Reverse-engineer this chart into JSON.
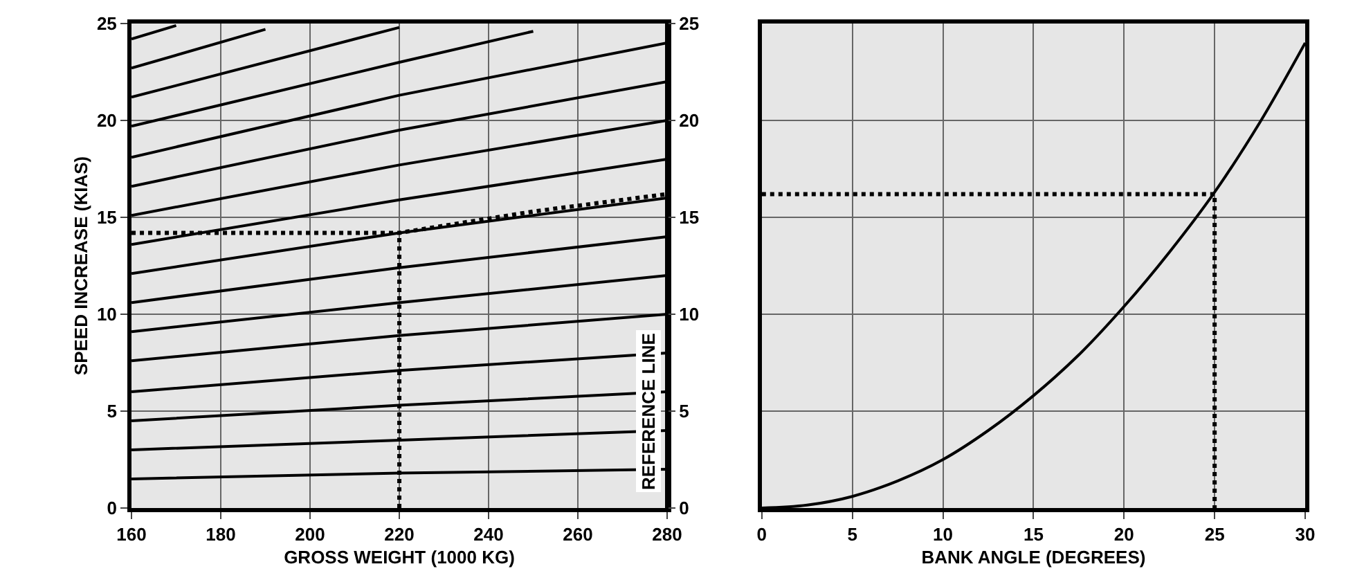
{
  "chart_data": [
    {
      "type": "line",
      "xlabel": "GROSS WEIGHT (1000 KG)",
      "ylabel": "SPEED INCREASE (KIAS)",
      "xlim": [
        160,
        280
      ],
      "xticks": [
        160,
        180,
        200,
        220,
        240,
        260,
        280
      ],
      "ylim": [
        0,
        25
      ],
      "yticks": [
        0,
        5,
        10,
        15,
        20,
        25
      ],
      "y2lim": [
        0,
        25
      ],
      "y2ticks": [
        0,
        5,
        10,
        15,
        20,
        25
      ],
      "grid": true,
      "marker": "none",
      "line_style": "solid",
      "ref_lines": [
        {
          "axis": "x",
          "value": 280,
          "label": "REFERENCE LINE",
          "color": "#000000"
        }
      ],
      "series": [
        {
          "color": "#000000",
          "x": [
            160,
            220,
            280
          ],
          "values": [
            1.5,
            1.8,
            2
          ]
        },
        {
          "color": "#000000",
          "x": [
            160,
            220,
            280
          ],
          "values": [
            3.0,
            3.5,
            4
          ]
        },
        {
          "color": "#000000",
          "x": [
            160,
            220,
            280
          ],
          "values": [
            4.5,
            5.3,
            6
          ]
        },
        {
          "color": "#000000",
          "x": [
            160,
            220,
            280
          ],
          "values": [
            6.0,
            7.1,
            8
          ]
        },
        {
          "color": "#000000",
          "x": [
            160,
            220,
            280
          ],
          "values": [
            7.6,
            8.9,
            10
          ]
        },
        {
          "color": "#000000",
          "x": [
            160,
            220,
            280
          ],
          "values": [
            9.1,
            10.6,
            12
          ]
        },
        {
          "color": "#000000",
          "x": [
            160,
            220,
            280
          ],
          "values": [
            10.6,
            12.4,
            14
          ]
        },
        {
          "color": "#000000",
          "x": [
            160,
            220,
            280
          ],
          "values": [
            12.1,
            14.2,
            16
          ]
        },
        {
          "color": "#000000",
          "x": [
            160,
            220,
            280
          ],
          "values": [
            13.6,
            15.9,
            18
          ]
        },
        {
          "color": "#000000",
          "x": [
            160,
            220,
            280
          ],
          "values": [
            15.1,
            17.7,
            20
          ]
        },
        {
          "color": "#000000",
          "x": [
            160,
            220,
            280
          ],
          "values": [
            16.6,
            19.5,
            22
          ]
        },
        {
          "color": "#000000",
          "x": [
            160,
            220,
            280
          ],
          "values": [
            18.1,
            21.3,
            24
          ]
        },
        {
          "color": "#000000",
          "x": [
            160,
            220,
            250
          ],
          "values": [
            19.7,
            23.0,
            24.6
          ]
        },
        {
          "color": "#000000",
          "x": [
            160,
            220
          ],
          "values": [
            21.2,
            24.8
          ]
        },
        {
          "color": "#000000",
          "x": [
            160,
            190
          ],
          "values": [
            22.7,
            24.7
          ]
        },
        {
          "color": "#000000",
          "x": [
            160,
            170
          ],
          "values": [
            24.2,
            24.9
          ]
        },
        {
          "color": "#000000",
          "line_style": "dotted",
          "x": [
            160,
            220,
            250,
            280
          ],
          "values": [
            14.2,
            14.2,
            15.3,
            16.2
          ]
        },
        {
          "color": "#000000",
          "line_style": "dotted",
          "x": [
            220,
            220
          ],
          "values": [
            0,
            14.2
          ]
        }
      ]
    },
    {
      "type": "line",
      "xlabel": "BANK ANGLE (DEGREES)",
      "xlim": [
        0,
        30
      ],
      "xticks": [
        0,
        5,
        10,
        15,
        20,
        25,
        30
      ],
      "ylim": [
        0,
        25
      ],
      "tick_labels": "x",
      "grid": true,
      "marker": "none",
      "line_style": "solid",
      "series": [
        {
          "color": "#000000",
          "x": [
            0,
            2.5,
            5,
            7.5,
            10,
            12.5,
            15,
            17.5,
            20,
            22.5,
            25,
            27.5,
            30
          ],
          "values": [
            0,
            0.15,
            0.6,
            1.4,
            2.5,
            4.0,
            5.8,
            7.9,
            10.4,
            13.2,
            16.3,
            19.9,
            24.0
          ]
        },
        {
          "color": "#000000",
          "line_style": "dotted",
          "x": [
            0,
            25,
            25
          ],
          "values": [
            16.2,
            16.2,
            0
          ]
        }
      ]
    }
  ]
}
